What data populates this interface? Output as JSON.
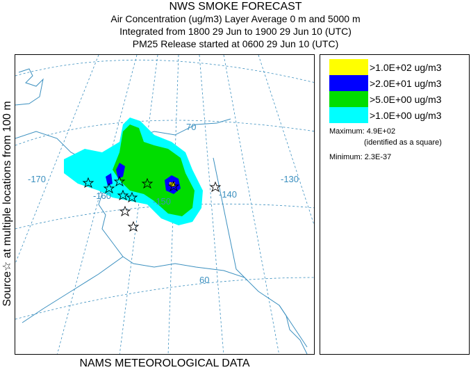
{
  "title": "NWS SMOKE FORECAST",
  "subtitle_lines": [
    "Air Concentration (ug/m3) Layer Average     0 m and  5000 m",
    "Integrated from 1800 29 Jun to 1900 29 Jun 10 (UTC)",
    "PM25 Release started at 0600 29 Jun 10 (UTC)"
  ],
  "side_label": "Source☆   at multiple locations   from   100 m",
  "footer": "NAMS METEOROLOGICAL DATA",
  "legend": [
    {
      "label": ">1.0E+02 ug/m3",
      "color": "#ffff00"
    },
    {
      "label": ">2.0E+01 ug/m3",
      "color": "#0000ff"
    },
    {
      "label": ">5.0E+00 ug/m3",
      "color": "#00dd00"
    },
    {
      "label": ">1.0E+00 ug/m3",
      "color": "#00ffff"
    }
  ],
  "maximum_label": "Maximum: 4.9E+02",
  "maximum_note": "(identified as a square)",
  "minimum_label": "Minimum: 2.3E-37",
  "graticule_labels": {
    "lat70": "70",
    "lat60": "60",
    "lon170": "-170",
    "lon160": "-160",
    "lon150": "-150",
    "lon140": "-140",
    "lon130": "-130"
  },
  "colors": {
    "coast": "#3a8fbf",
    "grid": "#3a8fbf",
    "border": "#3a8fbf",
    "smoke_light": "#00ffff",
    "smoke_medium": "#00dd00",
    "smoke_heavy": "#0000ff",
    "smoke_extreme": "#ffff00"
  },
  "icons": {
    "source_marker": "star-outline-icon",
    "maximum_marker": "square-icon"
  }
}
